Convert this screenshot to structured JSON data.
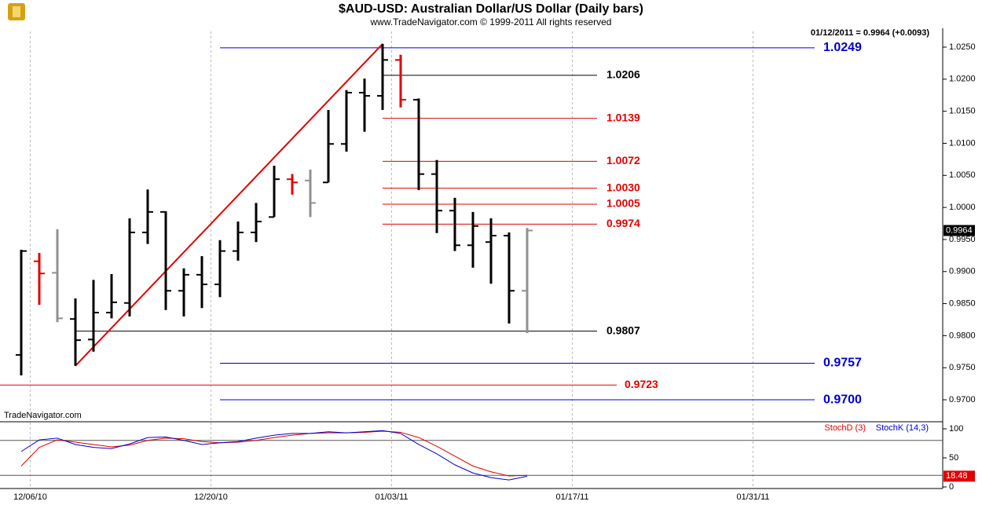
{
  "chart_data": [
    {
      "type": "ohlc",
      "title": "$AUD-USD:  Australian Dollar/US Dollar  (Daily bars)",
      "subtitle": "www.TradeNavigator.com © 1999-2011 All rights reserved",
      "info": "01/12/2011 = 0.9964 (+0.0093)",
      "watermark": "TradeNavigator.com",
      "x": [
        0,
        1,
        2,
        3,
        4,
        5,
        6,
        7,
        8,
        9,
        10,
        11,
        12,
        13,
        14,
        15,
        16,
        17,
        18,
        19,
        20,
        21,
        22,
        23,
        24,
        25,
        26,
        27,
        28
      ],
      "open": [
        0.977,
        0.9916,
        0.9898,
        0.9826,
        0.9794,
        0.9836,
        0.9851,
        0.9961,
        0.9993,
        0.987,
        0.9895,
        0.988,
        0.9932,
        0.9961,
        0.9985,
        1.0044,
        1.0042,
        1.0039,
        1.0099,
        1.0179,
        1.0174,
        1.023,
        1.0168,
        1.0052,
        0.9995,
        0.9941,
        0.9946,
        0.9956,
        0.987
      ],
      "high": [
        0.9934,
        0.9929,
        0.9966,
        0.9858,
        0.9887,
        0.9896,
        0.9983,
        1.0028,
        0.9994,
        0.9905,
        0.9924,
        0.9949,
        0.9978,
        1.0007,
        1.0065,
        1.0052,
        1.0059,
        1.0152,
        1.0183,
        1.0201,
        1.0255,
        1.0238,
        1.017,
        1.0074,
        1.0015,
        0.9993,
        0.9983,
        0.9961,
        0.9968
      ],
      "low": [
        0.9738,
        0.9848,
        0.9821,
        0.9753,
        0.9775,
        0.9827,
        0.983,
        0.9943,
        0.984,
        0.983,
        0.9843,
        0.986,
        0.9917,
        0.9946,
        0.9985,
        1.002,
        0.9985,
        1.0039,
        1.0087,
        1.0118,
        1.0152,
        1.0156,
        1.0027,
        0.996,
        0.9932,
        0.9906,
        0.9881,
        0.9819,
        0.9804
      ],
      "close": [
        0.9932,
        0.9897,
        0.9827,
        0.9793,
        0.9836,
        0.9852,
        0.9961,
        0.9993,
        0.987,
        0.9895,
        0.988,
        0.9932,
        0.9961,
        0.9978,
        1.0044,
        1.0039,
        1.0007,
        1.0099,
        1.0179,
        1.0174,
        1.023,
        1.0168,
        1.0052,
        0.9995,
        0.9941,
        0.9971,
        0.9956,
        0.987,
        0.9964
      ],
      "colors": [
        "#000000",
        "#e00000",
        "#909090",
        "#000000",
        "#000000",
        "#000000",
        "#000000",
        "#000000",
        "#000000",
        "#000000",
        "#000000",
        "#000000",
        "#000000",
        "#000000",
        "#000000",
        "#e00000",
        "#909090",
        "#000000",
        "#000000",
        "#000000",
        "#000000",
        "#e00000",
        "#000000",
        "#000000",
        "#000000",
        "#000000",
        "#000000",
        "#000000",
        "#909090"
      ],
      "xlim": [
        -1.1739,
        51
      ],
      "xticks": [
        {
          "value": 0.5,
          "label": "12/06/10"
        },
        {
          "value": 10.5,
          "label": "12/20/10"
        },
        {
          "value": 20.5,
          "label": "01/03/11"
        },
        {
          "value": 30.5,
          "label": "01/17/11"
        },
        {
          "value": 40.5,
          "label": "01/31/11"
        }
      ],
      "ylim": [
        0.96682,
        1.02745
      ],
      "yticks": [
        {
          "value": 0.97,
          "label": "0.9700"
        },
        {
          "value": 0.975,
          "label": "0.9750"
        },
        {
          "value": 0.98,
          "label": "0.9800"
        },
        {
          "value": 0.985,
          "label": "0.9850"
        },
        {
          "value": 0.99,
          "label": "0.9900"
        },
        {
          "value": 0.995,
          "label": "0.9950"
        },
        {
          "value": 1.0,
          "label": "1.0000"
        },
        {
          "value": 1.005,
          "label": "1.0050"
        },
        {
          "value": 1.01,
          "label": "1.0100"
        },
        {
          "value": 1.015,
          "label": "1.0150"
        },
        {
          "value": 1.02,
          "label": "1.0200"
        },
        {
          "value": 1.025,
          "label": "1.0250"
        }
      ],
      "levels": [
        {
          "value": 1.0249,
          "label": "1.0249",
          "color": "#0000cc"
        },
        {
          "value": 1.0206,
          "label": "1.0206",
          "color": "#000000"
        },
        {
          "value": 1.0139,
          "label": "1.0139",
          "color": "#e00000"
        },
        {
          "value": 1.0072,
          "label": "1.0072",
          "color": "#e00000"
        },
        {
          "value": 1.003,
          "label": "1.0030",
          "color": "#e00000"
        },
        {
          "value": 1.0005,
          "label": "1.0005",
          "color": "#e00000"
        },
        {
          "value": 0.9974,
          "label": "0.9974",
          "color": "#e00000"
        },
        {
          "value": 0.9807,
          "label": "0.9807",
          "color": "#000000"
        },
        {
          "value": 0.9757,
          "label": "0.9757",
          "color": "#0000cc"
        },
        {
          "value": 0.9723,
          "label": "0.9723",
          "color": "#e00000"
        },
        {
          "value": 0.97,
          "label": "0.9700",
          "color": "#0000cc"
        }
      ],
      "last_price": {
        "value": 0.9964,
        "label": "0.9964"
      },
      "trend_color": "#e00000"
    },
    {
      "type": "line",
      "series": [
        {
          "name": "StochD (3)",
          "color": "#e00000",
          "values": [
            36,
            68,
            81,
            77,
            73,
            69,
            72,
            80,
            84,
            83,
            78,
            76,
            77,
            80,
            85,
            89,
            92,
            93,
            93,
            94,
            96,
            94,
            85,
            70,
            53,
            36,
            26,
            19,
            20
          ]
        },
        {
          "name": "StochK (14,3)",
          "color": "#0000cc",
          "values": [
            61,
            81,
            84,
            73,
            68,
            66,
            74,
            85,
            86,
            80,
            73,
            76,
            78,
            84,
            89,
            92,
            92,
            95,
            93,
            95,
            97,
            92,
            73,
            57,
            38,
            24,
            16,
            12,
            18.48
          ]
        }
      ],
      "ylim": [
        -2.7,
        112.16
      ],
      "yticks": [
        0,
        50,
        100
      ],
      "reference_lines": [
        20,
        80
      ],
      "last_value": 18.48
    }
  ]
}
